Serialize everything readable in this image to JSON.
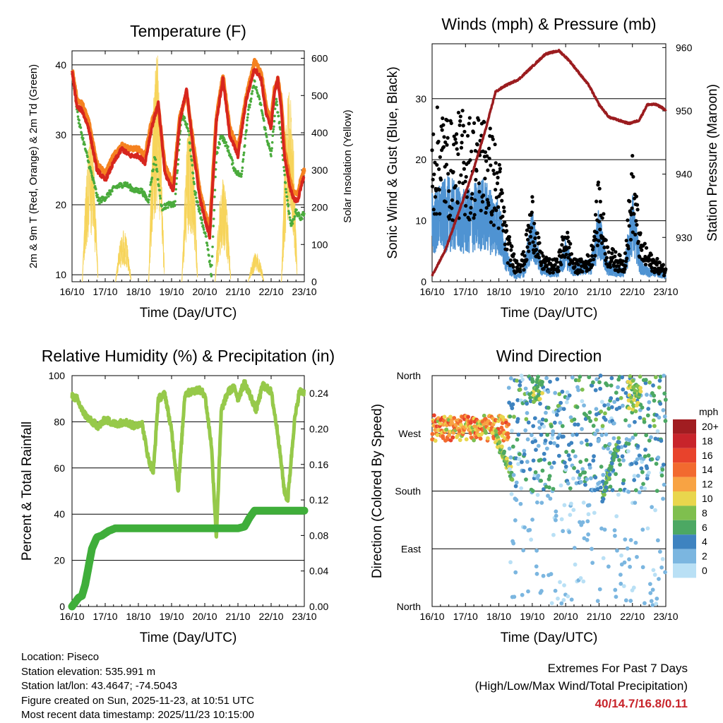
{
  "chart_data": [
    {
      "type": "line",
      "title": "Temperature (F)",
      "xlabel": "Time (Day/UTC)",
      "ylabel": "2m & 9m T (Red, Orange) & 2m Td (Green)",
      "y2label": "Solar Insolation (Yellow)",
      "x_tick_labels": [
        "16/10",
        "17/10",
        "18/10",
        "19/10",
        "20/10",
        "21/10",
        "22/10",
        "23/10"
      ],
      "ylim": [
        9,
        42
      ],
      "y_ticks": [
        10,
        20,
        30,
        40
      ],
      "y2lim": [
        0,
        620
      ],
      "y2_ticks": [
        0,
        100,
        200,
        300,
        400,
        500,
        600
      ],
      "series": [
        {
          "name": "2m T",
          "color": "#d7261e",
          "day": [
            0,
            0.15,
            0.3,
            0.5,
            0.75,
            1.0,
            1.25,
            1.5,
            1.75,
            2.0,
            2.2,
            2.4,
            2.6,
            2.8,
            3.05,
            3.25,
            3.45,
            3.65,
            3.85,
            4.0,
            4.15,
            4.35,
            4.55,
            4.75,
            5.0,
            5.25,
            5.5,
            5.7,
            5.85,
            6.0,
            6.1,
            6.2,
            6.3,
            6.4,
            6.55,
            6.65,
            6.8,
            6.92,
            7.0
          ],
          "values": [
            39,
            34,
            33.5,
            31,
            25,
            23.5,
            26,
            28,
            27,
            27,
            26,
            31,
            34.5,
            24.5,
            22,
            32,
            36.5,
            28,
            21,
            18,
            15.5,
            32,
            38,
            30,
            27,
            35,
            39.5,
            38,
            33,
            31,
            36,
            38,
            34,
            27,
            23,
            21,
            20.5,
            23,
            24
          ]
        },
        {
          "name": "9m T",
          "color": "#f58220",
          "day": [
            0,
            0.15,
            0.3,
            0.5,
            0.75,
            1.0,
            1.25,
            1.5,
            1.75,
            2.0,
            2.2,
            2.4,
            2.6,
            2.8,
            3.05,
            3.25,
            3.45,
            3.65,
            3.85,
            4.0,
            4.15,
            4.35,
            4.55,
            4.75,
            5.0,
            5.25,
            5.5,
            5.7,
            5.85,
            6.0,
            6.1,
            6.2,
            6.3,
            6.4,
            6.55,
            6.65,
            6.8,
            6.92,
            7.0
          ],
          "values": [
            39.5,
            35,
            34.5,
            32,
            26,
            24.5,
            27,
            28.5,
            28,
            28,
            27,
            32,
            34,
            25.5,
            23,
            32.5,
            36,
            29,
            22,
            19,
            16.5,
            32.5,
            38.5,
            31,
            28,
            35.5,
            40.5,
            39,
            34,
            32,
            36.5,
            38,
            35,
            28,
            24,
            22,
            21.5,
            24,
            25
          ]
        },
        {
          "name": "2m Td",
          "color": "#4aab3c",
          "day": [
            0,
            0.2,
            0.5,
            0.8,
            1.0,
            1.3,
            1.6,
            1.9,
            2.1,
            2.3,
            2.5,
            2.7,
            2.9,
            3.1,
            3.3,
            3.5,
            3.7,
            3.9,
            4.05,
            4.2,
            4.35,
            4.5,
            4.7,
            4.9,
            5.1,
            5.3,
            5.5,
            5.7,
            5.85,
            6.0,
            6.15,
            6.3,
            6.45,
            6.6,
            6.75,
            6.9,
            7.0
          ],
          "values": [
            39,
            32,
            26,
            20.5,
            21,
            22.5,
            23,
            22,
            22,
            20.5,
            27,
            19.5,
            20,
            20,
            33,
            31,
            22,
            18,
            15,
            10,
            27,
            30,
            28,
            25,
            24,
            33,
            37.5,
            34,
            30,
            27,
            35,
            30,
            22,
            17,
            19,
            18,
            19
          ]
        },
        {
          "name": "Solar Insolation",
          "color": "#f6d45a",
          "axis": "y2",
          "peaks_day": [
            0.55,
            1.55,
            2.55,
            3.55,
            4.55,
            5.55,
            6.55
          ],
          "peaks_value": [
            420,
            140,
            620,
            440,
            280,
            80,
            540
          ]
        }
      ]
    },
    {
      "type": "line",
      "title": "Winds (mph) & Pressure (mb)",
      "xlabel": "Time (Day/UTC)",
      "ylabel": "Sonic Wind & Gust (Blue, Black)",
      "y2label": "Station Pressure (Maroon)",
      "x_tick_labels": [
        "16/10",
        "17/10",
        "18/10",
        "19/10",
        "20/10",
        "21/10",
        "22/10",
        "23/10"
      ],
      "ylim": [
        0,
        39
      ],
      "y_ticks": [
        0,
        10,
        20,
        30
      ],
      "y2lim": [
        923.0,
        960.6
      ],
      "y2_ticks": [
        930,
        940,
        950,
        960
      ],
      "series": [
        {
          "name": "Sonic Wind",
          "color": "#4f93d2",
          "day": [
            0,
            0.5,
            1.0,
            1.5,
            2.0,
            2.25,
            2.5,
            2.75,
            3.0,
            3.25,
            3.5,
            3.75,
            4.0,
            4.25,
            4.5,
            4.75,
            5.0,
            5.25,
            5.5,
            5.75,
            6.0,
            6.25,
            6.5,
            6.75,
            7.0
          ],
          "values": [
            12,
            14,
            12,
            14,
            11,
            4,
            1,
            2,
            10,
            3,
            2,
            2,
            6,
            2,
            3,
            3,
            10,
            3,
            2,
            2,
            12,
            3,
            2,
            2,
            1
          ]
        },
        {
          "name": "Gust",
          "color": "#000000",
          "day": [
            0,
            0.3,
            0.6,
            0.9,
            1.2,
            1.5,
            1.8,
            2.0,
            2.25,
            2.5,
            2.75,
            3.0,
            3.25,
            3.5,
            3.75,
            4.0,
            4.25,
            4.5,
            4.75,
            5.0,
            5.25,
            5.5,
            5.75,
            6.0,
            6.25,
            6.5,
            6.75,
            7.0
          ],
          "values": [
            22,
            24,
            21,
            23,
            22,
            23,
            20,
            17,
            7,
            3,
            4,
            12,
            4,
            3,
            3,
            8,
            3,
            3,
            4,
            14,
            5,
            4,
            3,
            17,
            6,
            4,
            3,
            2
          ]
        },
        {
          "name": "Station Pressure",
          "color": "#9b1c1f",
          "axis": "y2",
          "day": [
            0,
            0.4,
            0.8,
            1.2,
            1.6,
            1.9,
            2.2,
            2.6,
            3.0,
            3.4,
            3.8,
            4.1,
            4.4,
            4.7,
            5.0,
            5.3,
            5.6,
            5.9,
            6.2,
            6.45,
            6.7,
            6.9,
            7.0
          ],
          "values": [
            924,
            928,
            934,
            940,
            947,
            953,
            954,
            955,
            957,
            959,
            959.5,
            958,
            956,
            954,
            951,
            949,
            948.5,
            948,
            948.5,
            951,
            951,
            950.5,
            950
          ]
        }
      ]
    },
    {
      "type": "line",
      "title": "Relative Humidity (%) & Precipitation (in)",
      "xlabel": "Time (Day/UTC)",
      "ylabel": "Percent & Total Rainfall",
      "x_tick_labels": [
        "16/10",
        "17/10",
        "18/10",
        "19/10",
        "20/10",
        "21/10",
        "22/10",
        "23/10"
      ],
      "ylim": [
        0,
        100
      ],
      "y_ticks": [
        0,
        20,
        40,
        60,
        80,
        100
      ],
      "y2lim": [
        0,
        0.26
      ],
      "y2_ticks": [
        "0.00",
        "0.04",
        "0.08",
        "0.12",
        "0.16",
        "0.20",
        "0.24"
      ],
      "series": [
        {
          "name": "Relative Humidity",
          "color": "#96c94a",
          "day": [
            0,
            0.15,
            0.3,
            0.45,
            0.6,
            0.8,
            1.0,
            1.3,
            1.6,
            1.9,
            2.1,
            2.3,
            2.45,
            2.6,
            2.8,
            3.0,
            3.2,
            3.4,
            3.6,
            3.8,
            4.0,
            4.2,
            4.35,
            4.5,
            4.7,
            4.9,
            5.0,
            5.2,
            5.35,
            5.55,
            5.75,
            6.0,
            6.2,
            6.4,
            6.5,
            6.7,
            6.85,
            7.0
          ],
          "values": [
            91,
            90,
            85,
            82,
            80,
            78,
            81,
            79,
            80,
            78,
            80,
            64,
            58,
            90,
            92,
            76,
            50,
            92,
            93,
            94,
            92,
            70,
            30,
            85,
            93,
            95,
            90,
            97,
            92,
            85,
            96,
            93,
            75,
            50,
            46,
            80,
            93,
            93
          ]
        },
        {
          "name": "Total Rainfall",
          "color": "#3fae3a",
          "axis": "y2",
          "day": [
            0,
            0.1,
            0.2,
            0.3,
            0.4,
            0.5,
            0.6,
            0.75,
            0.9,
            1.1,
            1.3,
            2,
            3,
            4,
            5,
            5.2,
            5.35,
            5.5,
            6,
            7
          ],
          "values": [
            0.0,
            0.005,
            0.01,
            0.012,
            0.025,
            0.045,
            0.065,
            0.078,
            0.08,
            0.085,
            0.088,
            0.088,
            0.088,
            0.088,
            0.088,
            0.09,
            0.1,
            0.108,
            0.108,
            0.108
          ]
        }
      ]
    },
    {
      "type": "scatter",
      "title": "Wind Direction",
      "xlabel": "Time (Day/UTC)",
      "ylabel": "Direction (Colored By Speed)",
      "x_tick_labels": [
        "16/10",
        "17/10",
        "18/10",
        "19/10",
        "20/10",
        "21/10",
        "22/10",
        "23/10"
      ],
      "y_tick_labels": [
        "North",
        "East",
        "South",
        "West",
        "North"
      ],
      "y_ticks_deg": [
        0,
        90,
        180,
        270,
        360
      ],
      "ylim": [
        0,
        360
      ],
      "legend_title": "mph",
      "legend_labels": [
        "20+",
        "18",
        "16",
        "14",
        "12",
        "10",
        "8",
        "6",
        "4",
        "2",
        "0"
      ],
      "legend_colors": [
        "#a11d21",
        "#c8242b",
        "#e8432c",
        "#f26a2f",
        "#f8a343",
        "#e9d64d",
        "#7fbf4e",
        "#4ca863",
        "#3e83c0",
        "#7bb6e0",
        "#b9e0f5"
      ]
    }
  ],
  "footer": {
    "location": "Location: Piseco",
    "elevation": "Station elevation: 535.991 m",
    "latlon": "Station lat/lon: 43.4647; -74.5043",
    "created": "Figure created on Sun, 2025-11-23, at 10:51 UTC",
    "latest": "Most recent data timestamp: 2025/11/23 10:15:00",
    "extremes_title": "Extremes For Past 7 Days",
    "extremes_subtitle": "(High/Low/Max Wind/Total Precipitation)",
    "extremes_values": "40/14.7/16.8/0.11"
  }
}
